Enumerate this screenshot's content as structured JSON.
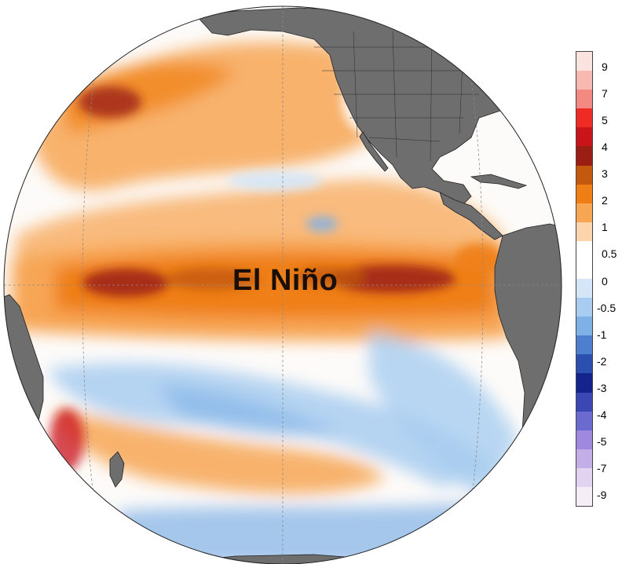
{
  "map": {
    "label": "El Niño",
    "projection": "orthographic",
    "center": "equatorial Pacific",
    "land_color": "#6e6e6e"
  },
  "colorbar": {
    "labels": [
      "9",
      "7",
      "5",
      "4",
      "3",
      "2",
      "1",
      "0.5",
      "0",
      "-0.5",
      "-1",
      "-2",
      "-3",
      "-4",
      "-5",
      "-7",
      "-9"
    ],
    "colors": [
      "#fbe3e0",
      "#f8b9b1",
      "#f28a82",
      "#ef2b26",
      "#c9141a",
      "#9b1e15",
      "#c2590f",
      "#ef7f14",
      "#f7a654",
      "#fcd5ad",
      "#ffffff",
      "#ffffff",
      "#d4e6f7",
      "#a8cdf0",
      "#7fb1e6",
      "#4e7fcf",
      "#2a4fae",
      "#13248c",
      "#3b47b5",
      "#6a6acf",
      "#9e89de",
      "#c4aee8",
      "#e2d3f1",
      "#f6eef7"
    ]
  }
}
